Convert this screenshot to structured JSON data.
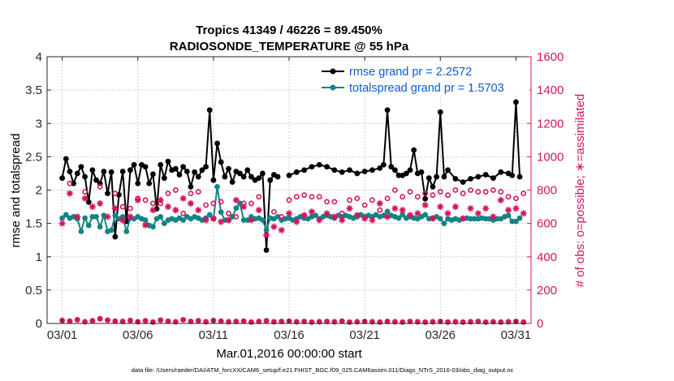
{
  "chart_data": {
    "type": "line",
    "title_line1": "Tropics 41349 / 46226 = 89.450%",
    "title_line2": "RADIOSONDE_TEMPERATURE @ 55 hPa",
    "xlabel": "Mar.01,2016 00:00:00 start",
    "ylabel_left": "rmse and totalspread",
    "ylabel_right": "# of obs: o=possible; ∗=assimilated",
    "footnote": "data file: /Users/raeder/DAI/ATM_forcXX/CAM6_setup/f.e21.FHIST_BGC.f09_025.CAM6assim.011/Diags_NTrS_2016-03/obs_diag_output.nc",
    "xlim": [
      0,
      32
    ],
    "ylim_left": [
      0,
      4
    ],
    "ylim_right": [
      0,
      1600
    ],
    "x_ticks": [
      {
        "x": 1,
        "label": "03/01"
      },
      {
        "x": 6,
        "label": "03/06"
      },
      {
        "x": 11,
        "label": "03/11"
      },
      {
        "x": 16,
        "label": "03/16"
      },
      {
        "x": 21,
        "label": "03/21"
      },
      {
        "x": 26,
        "label": "03/26"
      },
      {
        "x": 31,
        "label": "03/31"
      }
    ],
    "y_ticks_left": [
      "0",
      "0.5",
      "1",
      "1.5",
      "2",
      "2.5",
      "3",
      "3.5",
      "4"
    ],
    "y_ticks_right": [
      "0",
      "200",
      "400",
      "600",
      "800",
      "1000",
      "1200",
      "1400",
      "1600"
    ],
    "series": [
      {
        "name": "rmse",
        "legend": "rmse grand pr = 2.2572",
        "color": "#000000",
        "marker": "star",
        "x": [
          1.0,
          1.25,
          1.5,
          1.75,
          2.0,
          2.25,
          2.5,
          2.75,
          3.0,
          3.25,
          3.5,
          3.75,
          4.0,
          4.25,
          4.5,
          4.75,
          5.0,
          5.25,
          5.5,
          5.75,
          6.0,
          6.25,
          6.5,
          6.75,
          7.0,
          7.25,
          7.5,
          7.75,
          8.0,
          8.25,
          8.5,
          8.75,
          9.0,
          9.25,
          9.5,
          9.75,
          10.0,
          10.25,
          10.5,
          10.75,
          11.0,
          11.25,
          11.5,
          11.75,
          12.0,
          12.25,
          12.5,
          12.75,
          13.0,
          13.25,
          13.5,
          13.75,
          14.0,
          14.25,
          14.5,
          14.75,
          15.0,
          15.25
        ],
        "values": [
          2.18,
          2.47,
          2.28,
          2.1,
          2.25,
          2.35,
          2.2,
          1.82,
          2.3,
          2.15,
          2.1,
          2.28,
          1.95,
          2.27,
          1.3,
          1.93,
          2.28,
          1.53,
          2.3,
          2.38,
          2.1,
          2.38,
          2.35,
          2.1,
          2.24,
          1.72,
          2.38,
          2.18,
          2.43,
          2.3,
          2.32,
          2.23,
          2.35,
          2.28,
          2.05,
          2.27,
          2.2,
          2.3,
          2.35,
          3.2,
          2.15,
          2.7,
          2.42,
          2.2,
          2.32,
          2.12,
          2.28,
          2.25,
          2.2,
          2.3,
          2.2,
          2.15,
          2.18,
          2.25,
          1.1,
          2.15,
          2.23,
          2.2
        ]
      },
      {
        "name": "rmse_b",
        "legend": "",
        "color": "#000000",
        "marker": "star",
        "x": [
          16.0,
          16.5,
          17.0,
          17.5,
          18.0,
          18.5,
          19.0,
          19.5,
          20.0,
          20.5,
          21.0,
          21.5,
          22.0,
          22.25,
          22.5,
          22.75,
          23.0,
          23.25,
          23.5,
          23.75,
          24.0,
          24.25,
          24.5,
          24.75,
          25.0,
          25.25,
          25.5,
          25.75,
          26.0,
          26.25,
          26.5,
          27.0,
          27.5,
          28.0,
          28.5,
          29.0,
          29.5,
          30.0,
          30.5,
          30.75,
          31.0,
          31.25
        ],
        "values": [
          2.22,
          2.27,
          2.3,
          2.35,
          2.38,
          2.35,
          2.3,
          2.27,
          2.3,
          2.25,
          2.28,
          2.3,
          2.33,
          2.38,
          3.2,
          2.35,
          2.3,
          2.22,
          2.22,
          2.25,
          2.3,
          2.6,
          2.25,
          2.27,
          1.87,
          2.18,
          2.05,
          2.2,
          3.17,
          2.2,
          2.3,
          2.17,
          2.12,
          2.17,
          2.2,
          2.23,
          2.18,
          2.27,
          2.25,
          2.22,
          3.32,
          2.2
        ]
      },
      {
        "name": "totalspread",
        "legend": "totalspread grand pr = 1.5703",
        "color": "#138484",
        "marker": "dot",
        "x": [
          1.0,
          1.25,
          1.5,
          1.75,
          2.0,
          2.25,
          2.5,
          2.75,
          3.0,
          3.25,
          3.5,
          3.75,
          4.0,
          4.25,
          4.5,
          4.75,
          5.0,
          5.25,
          5.5,
          5.75,
          6.0,
          6.25,
          6.5,
          6.75,
          7.0,
          7.25,
          7.5,
          7.75,
          8.0,
          8.25,
          8.5,
          8.75,
          9.0,
          9.25,
          9.5,
          9.75,
          10.0,
          10.25,
          10.5,
          10.75,
          11.0,
          11.25,
          11.5,
          11.75,
          12.0,
          12.25,
          12.5,
          12.75,
          13.0,
          13.25,
          13.5,
          13.75,
          14.0,
          14.25,
          14.5,
          14.75,
          15.0,
          15.25,
          15.5,
          15.75,
          16.0,
          16.25,
          16.5,
          16.75,
          17.0,
          17.25,
          17.5,
          17.75,
          18.0,
          18.25,
          18.5,
          18.75,
          19.0,
          19.25,
          19.5,
          19.75,
          20.0,
          20.25,
          20.5,
          20.75,
          21.0,
          21.25,
          21.5,
          21.75,
          22.0,
          22.25,
          22.5,
          22.75,
          23.0,
          23.25,
          23.5,
          23.75,
          24.0,
          24.25,
          24.5,
          24.75,
          25.0,
          25.25,
          25.5,
          25.75,
          26.0,
          26.25,
          26.5,
          26.75,
          27.0,
          27.25,
          27.5,
          27.75,
          28.0,
          28.25,
          28.5,
          28.75,
          29.0,
          29.25,
          29.5,
          29.75,
          30.0,
          30.25,
          30.5,
          30.75,
          31.0,
          31.25
        ],
        "values": [
          1.58,
          1.63,
          1.58,
          1.6,
          1.57,
          1.38,
          1.58,
          1.47,
          1.6,
          1.6,
          1.45,
          1.62,
          1.38,
          1.4,
          1.62,
          1.57,
          1.6,
          1.38,
          1.58,
          1.57,
          1.6,
          1.57,
          1.55,
          1.47,
          1.45,
          1.57,
          1.6,
          1.5,
          1.55,
          1.57,
          1.55,
          1.58,
          1.55,
          1.6,
          1.57,
          1.6,
          1.58,
          1.55,
          1.58,
          1.63,
          1.57,
          2.05,
          1.67,
          1.55,
          1.55,
          1.6,
          1.73,
          1.8,
          1.55,
          1.55,
          1.6,
          1.57,
          1.58,
          1.55,
          1.4,
          1.58,
          1.57,
          1.6,
          1.55,
          1.57,
          1.58,
          1.55,
          1.57,
          1.6,
          1.58,
          1.57,
          1.6,
          1.62,
          1.57,
          1.6,
          1.62,
          1.6,
          1.58,
          1.62,
          1.6,
          1.62,
          1.6,
          1.58,
          1.6,
          1.63,
          1.6,
          1.62,
          1.6,
          1.63,
          1.6,
          1.62,
          1.68,
          1.62,
          1.6,
          1.58,
          1.63,
          1.58,
          1.6,
          1.58,
          1.57,
          1.6,
          1.63,
          1.57,
          1.58,
          1.6,
          1.57,
          1.5,
          1.57,
          1.55,
          1.57,
          1.55,
          1.57,
          1.58,
          1.57,
          1.57,
          1.57,
          1.58,
          1.57,
          1.57,
          1.55,
          1.57,
          1.57,
          1.6,
          1.62,
          1.53,
          1.53,
          1.58
        ]
      },
      {
        "name": "obs_possible",
        "legend": "",
        "axis": "right",
        "color": "#d6135e",
        "marker": "circle",
        "x": [
          1.5,
          2.5,
          3.5,
          4.5,
          5.0,
          5.5,
          6.0,
          6.5,
          7.0,
          7.5,
          8.0,
          8.5,
          9.0,
          9.5,
          10.0,
          10.5,
          11.0,
          11.5,
          12.0,
          12.5,
          13.0,
          13.5,
          14.0,
          15.0,
          15.5,
          16.0,
          16.5,
          17.0,
          17.5,
          18.0,
          18.5,
          19.0,
          19.5,
          20.0,
          20.5,
          21.0,
          21.5,
          22.0,
          22.5,
          23.0,
          23.5,
          24.0,
          24.5,
          25.0,
          25.5,
          26.0,
          26.5,
          27.0,
          27.5,
          28.0,
          28.5,
          29.0,
          29.5,
          30.0,
          30.5,
          31.0,
          31.5
        ],
        "values": [
          840,
          790,
          820,
          780,
          700,
          690,
          750,
          740,
          720,
          720,
          780,
          800,
          660,
          780,
          790,
          710,
          720,
          730,
          660,
          640,
          720,
          720,
          760,
          670,
          640,
          740,
          760,
          770,
          760,
          760,
          730,
          730,
          660,
          740,
          750,
          710,
          740,
          680,
          750,
          800,
          760,
          790,
          760,
          780,
          770,
          790,
          770,
          800,
          780,
          800,
          790,
          790,
          800,
          790,
          760,
          750,
          780
        ]
      },
      {
        "name": "obs_assimilated",
        "legend": "",
        "axis": "right",
        "color": "#d6135e",
        "marker": "asterisk",
        "x": [
          1.0,
          1.5,
          2.0,
          2.5,
          3.0,
          3.5,
          4.0,
          4.5,
          5.0,
          5.5,
          6.0,
          6.5,
          7.0,
          7.5,
          8.0,
          8.5,
          9.0,
          9.5,
          10.0,
          10.5,
          11.0,
          11.5,
          12.0,
          12.5,
          13.0,
          13.5,
          14.0,
          14.5,
          15.0,
          15.5,
          16.0,
          16.5,
          17.0,
          17.5,
          18.0,
          18.5,
          19.0,
          19.5,
          20.0,
          20.5,
          21.0,
          21.5,
          22.0,
          22.5,
          23.0,
          23.5,
          24.0,
          24.5,
          25.0,
          25.5,
          26.0,
          26.5,
          27.0,
          27.5,
          28.0,
          28.5,
          29.0,
          29.5,
          30.0,
          30.5,
          31.0,
          31.5
        ],
        "values": [
          600,
          780,
          640,
          750,
          700,
          720,
          640,
          690,
          620,
          640,
          740,
          590,
          680,
          740,
          700,
          680,
          750,
          720,
          680,
          620,
          630,
          610,
          620,
          740,
          700,
          620,
          680,
          530,
          580,
          560,
          660,
          610,
          650,
          670,
          620,
          660,
          640,
          620,
          690,
          650,
          630,
          620,
          720,
          640,
          690,
          680,
          650,
          660,
          710,
          630,
          700,
          660,
          700,
          630,
          690,
          660,
          690,
          640,
          740,
          680,
          690,
          660
        ]
      },
      {
        "name": "obs_near_zero",
        "legend": "",
        "axis": "right",
        "color": "#d6135e",
        "marker": "small-star",
        "x": [
          1.0,
          1.5,
          2.0,
          2.5,
          3.0,
          3.5,
          4.0,
          4.5,
          5.0,
          5.5,
          6.0,
          6.5,
          7.0,
          7.5,
          8.0,
          8.5,
          9.0,
          9.5,
          10.0,
          10.5,
          11.0,
          11.5,
          12.0,
          12.5,
          13.0,
          13.5,
          14.0,
          14.5,
          15.0,
          15.5,
          16.0,
          16.5,
          17.0,
          17.5,
          18.0,
          18.5,
          19.0,
          19.5,
          20.0,
          20.5,
          21.0,
          21.5,
          22.0,
          22.5,
          23.0,
          23.5,
          24.0,
          24.5,
          25.0,
          25.5,
          26.0,
          26.5,
          27.0,
          27.5,
          28.0,
          28.5,
          29.0,
          29.5,
          30.0,
          30.5,
          31.0,
          31.5
        ],
        "values": [
          18,
          14,
          22,
          10,
          16,
          28,
          20,
          14,
          12,
          18,
          10,
          16,
          8,
          20,
          14,
          10,
          22,
          12,
          16,
          10,
          18,
          14,
          10,
          12,
          14,
          8,
          12,
          16,
          10,
          12,
          14,
          10,
          12,
          8,
          10,
          12,
          10,
          14,
          8,
          10,
          12,
          10,
          8,
          12,
          10,
          8,
          12,
          10,
          8,
          10,
          12,
          8,
          10,
          8,
          10,
          12,
          8,
          10,
          8,
          10,
          12,
          8
        ]
      }
    ]
  }
}
